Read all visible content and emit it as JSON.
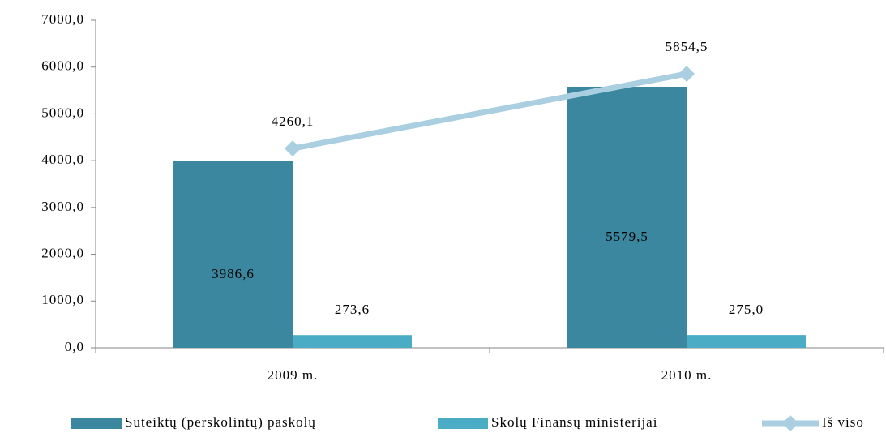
{
  "chart_data": {
    "type": "bar",
    "categories": [
      "2009 m.",
      "2010 m."
    ],
    "series": [
      {
        "name": "Suteiktų (perskolintų) paskolų",
        "type": "bar",
        "color": "#3b87a0",
        "values": [
          3986.6,
          5579.5
        ],
        "value_labels": [
          "3986,6",
          "5579,5"
        ]
      },
      {
        "name": "Skolų Finansų ministerijai",
        "type": "bar",
        "color": "#4bacc6",
        "values": [
          273.6,
          275.0
        ],
        "value_labels": [
          "273,6",
          "275,0"
        ]
      },
      {
        "name": "Iš viso",
        "type": "line",
        "color": "#a9cfe0",
        "values": [
          4260.1,
          5854.5
        ],
        "value_labels": [
          "4260,1",
          "5854,5"
        ]
      }
    ],
    "ylim": [
      0,
      7000
    ],
    "yticks": [
      {
        "value": 0,
        "label": "0,0"
      },
      {
        "value": 1000,
        "label": "1000,0"
      },
      {
        "value": 2000,
        "label": "2000,0"
      },
      {
        "value": 3000,
        "label": "3000,0"
      },
      {
        "value": 4000,
        "label": "4000,0"
      },
      {
        "value": 5000,
        "label": "5000,0"
      },
      {
        "value": 6000,
        "label": "6000,0"
      },
      {
        "value": 7000,
        "label": "7000,0"
      }
    ],
    "legend": "bottom"
  }
}
